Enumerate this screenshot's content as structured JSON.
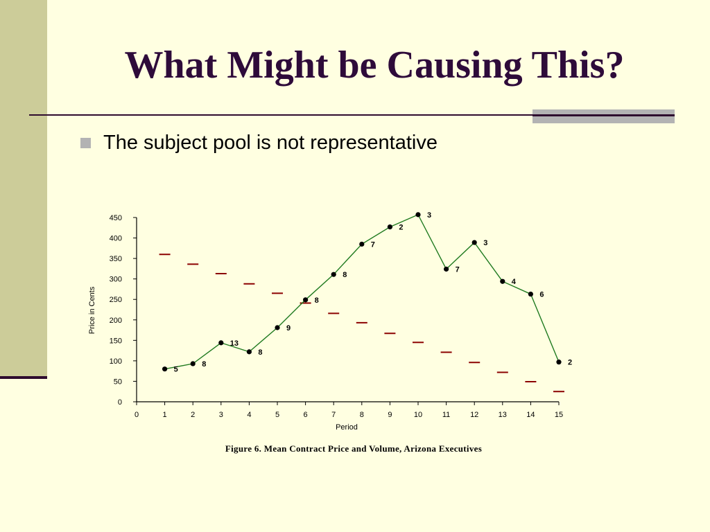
{
  "slide": {
    "title": "What Might be Causing This?",
    "bullet": "The subject pool is not representative",
    "caption": "Figure 6.  Mean Contract Price and Volume, Arizona Executives"
  },
  "colors": {
    "background": "#FFFFE1",
    "left_band": "#CCCC99",
    "title_text": "#2E0B3A",
    "price_line": "#1F7A1F",
    "markers": "#000000",
    "dash_series": "#8B0000"
  },
  "chart_data": {
    "type": "line",
    "xlabel": "Period",
    "ylabel": "Price in Cents",
    "xlim": [
      0,
      15
    ],
    "ylim": [
      0,
      450
    ],
    "x_ticks": [
      0,
      1,
      2,
      3,
      4,
      5,
      6,
      7,
      8,
      9,
      10,
      11,
      12,
      13,
      14,
      15
    ],
    "y_ticks": [
      0,
      50,
      100,
      150,
      200,
      250,
      300,
      350,
      400,
      450
    ],
    "grid": false,
    "series": [
      {
        "style": "line-with-markers",
        "x": [
          1,
          2,
          3,
          4,
          5,
          6,
          7,
          8,
          9,
          10,
          11,
          12,
          13,
          14,
          15
        ],
        "y": [
          80,
          93,
          144,
          122,
          181,
          249,
          311,
          385,
          427,
          457,
          324,
          389,
          294,
          263,
          97
        ],
        "point_labels": [
          "5",
          "8",
          "13",
          "8",
          "9",
          "8",
          "8",
          "7",
          "2",
          "3",
          "7",
          "3",
          "4",
          "6",
          "2"
        ]
      },
      {
        "style": "dash-markers",
        "x": [
          1,
          2,
          3,
          4,
          5,
          6,
          7,
          8,
          9,
          10,
          11,
          12,
          13,
          14,
          15
        ],
        "y": [
          360,
          336,
          313,
          288,
          265,
          241,
          216,
          193,
          167,
          145,
          121,
          96,
          72,
          49,
          25
        ]
      }
    ]
  }
}
